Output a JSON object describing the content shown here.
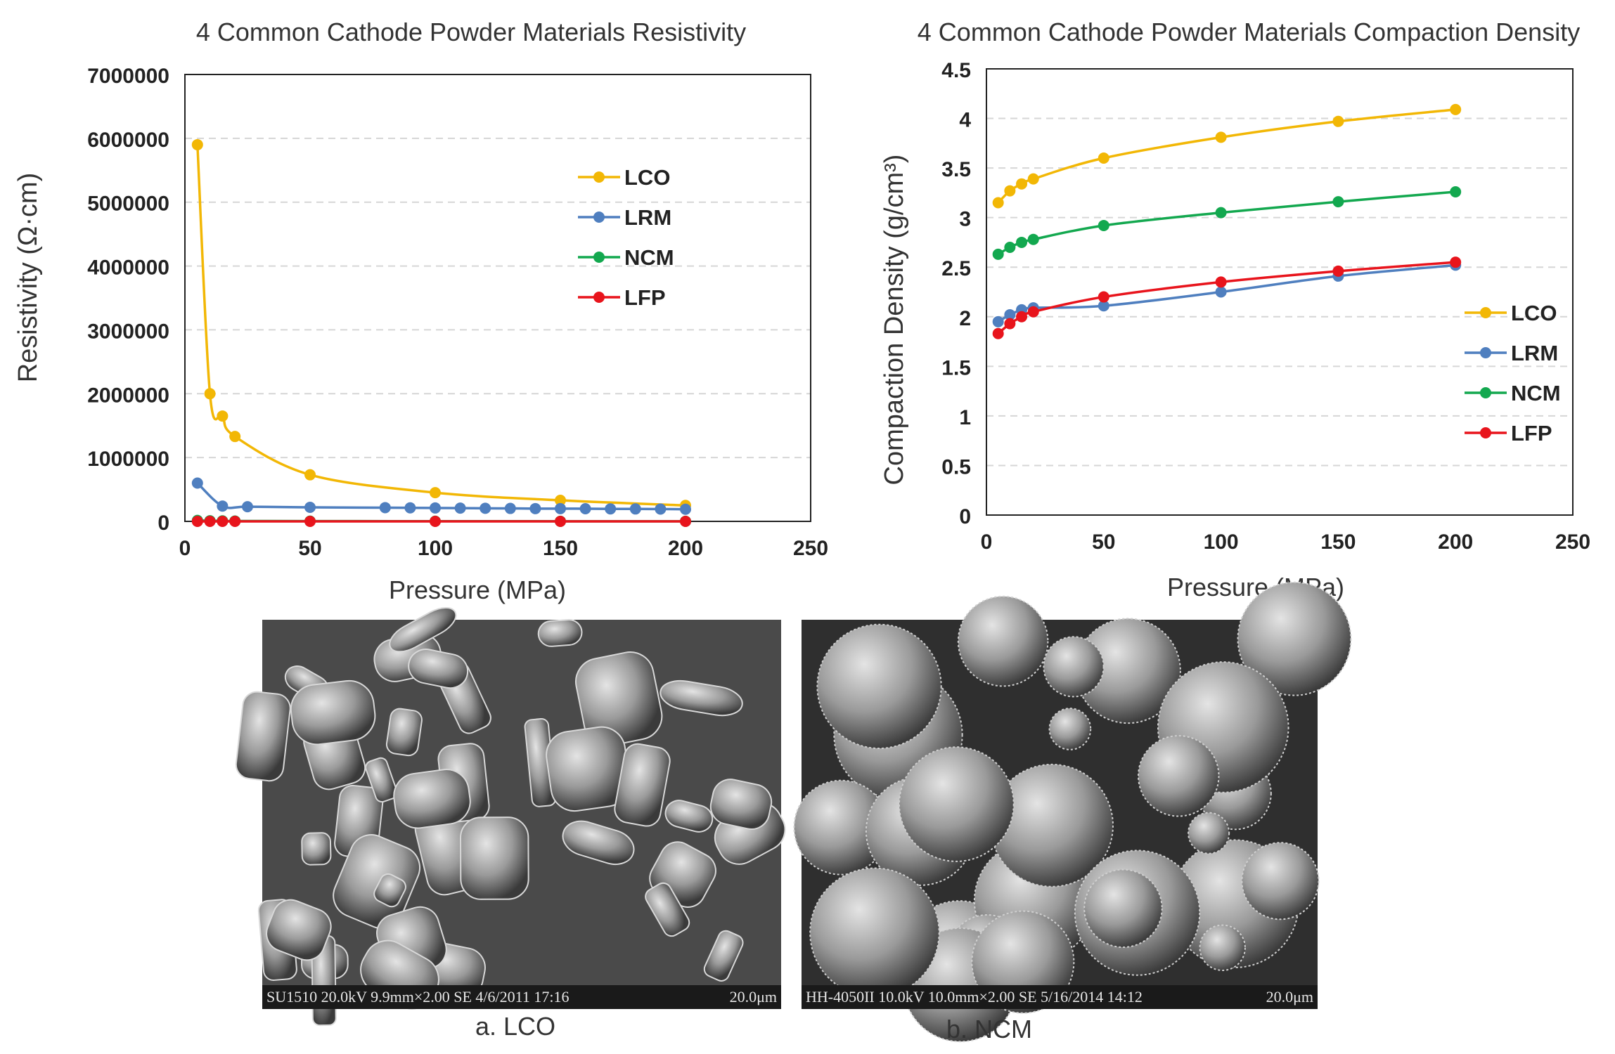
{
  "chart_data": [
    {
      "type": "line",
      "title": "4 Common Cathode Powder Materials Resistivity",
      "xlabel": "Pressure (MPa)",
      "ylabel": "Resistivity (Ω·cm)",
      "xlim": [
        0,
        250
      ],
      "ylim": [
        0,
        7000000
      ],
      "xticks": [
        "0",
        "50",
        "100",
        "150",
        "200",
        "250"
      ],
      "yticks": [
        "0",
        "1000000",
        "2000000",
        "3000000",
        "4000000",
        "5000000",
        "6000000",
        "7000000"
      ],
      "grid": "horizontal dashed",
      "legend": "right",
      "series": [
        {
          "name": "LCO",
          "color": "#F2B705",
          "x": [
            5,
            10,
            15,
            20,
            50,
            100,
            150,
            200
          ],
          "y": [
            5900000,
            2000000,
            1650000,
            1330000,
            730000,
            450000,
            330000,
            250000
          ]
        },
        {
          "name": "LRM",
          "color": "#4F7FBF",
          "x": [
            5,
            15,
            25,
            50,
            80,
            90,
            100,
            110,
            120,
            130,
            140,
            150,
            160,
            170,
            180,
            190,
            200
          ],
          "y": [
            600000,
            240000,
            230000,
            220000,
            215000,
            212000,
            210000,
            208000,
            205000,
            203000,
            200000,
            200000,
            198000,
            196000,
            195000,
            193000,
            190000
          ]
        },
        {
          "name": "NCM",
          "color": "#13A84F",
          "x": [
            5,
            10,
            15,
            20,
            50,
            100,
            150,
            200
          ],
          "y": [
            15000,
            10000,
            8000,
            6000,
            4000,
            3000,
            2000,
            2000
          ]
        },
        {
          "name": "LFP",
          "color": "#E8141C",
          "x": [
            5,
            10,
            15,
            20,
            50,
            100,
            150,
            200
          ],
          "y": [
            0,
            0,
            0,
            0,
            0,
            0,
            0,
            0
          ]
        }
      ]
    },
    {
      "type": "line",
      "title": "4 Common Cathode Powder Materials Compaction Density",
      "xlabel": "Pressure (MPa)",
      "ylabel": "Compaction Density (g/cm³)",
      "xlim": [
        0,
        250
      ],
      "ylim": [
        0,
        4.5
      ],
      "xticks": [
        "0",
        "50",
        "100",
        "150",
        "200",
        "250"
      ],
      "yticks": [
        "0",
        "0.5",
        "1",
        "1.5",
        "2",
        "2.5",
        "3",
        "3.5",
        "4",
        "4.5"
      ],
      "grid": "horizontal dashed",
      "legend": "right",
      "series": [
        {
          "name": "LCO",
          "color": "#F2B705",
          "x": [
            5,
            10,
            15,
            20,
            50,
            100,
            150,
            200
          ],
          "y": [
            3.15,
            3.27,
            3.34,
            3.39,
            3.6,
            3.81,
            3.97,
            4.09
          ]
        },
        {
          "name": "LRM",
          "color": "#4F7FBF",
          "x": [
            5,
            10,
            15,
            20,
            50,
            100,
            150,
            200
          ],
          "y": [
            1.95,
            2.02,
            2.07,
            2.09,
            2.11,
            2.25,
            2.41,
            2.52
          ]
        },
        {
          "name": "NCM",
          "color": "#13A84F",
          "x": [
            5,
            10,
            15,
            20,
            50,
            100,
            150,
            200
          ],
          "y": [
            2.63,
            2.7,
            2.75,
            2.78,
            2.92,
            3.05,
            3.16,
            3.26
          ]
        },
        {
          "name": "LFP",
          "color": "#E8141C",
          "x": [
            5,
            10,
            15,
            20,
            50,
            100,
            150,
            200
          ],
          "y": [
            1.83,
            1.93,
            2.0,
            2.05,
            2.2,
            2.35,
            2.46,
            2.55
          ]
        }
      ]
    }
  ],
  "images": [
    {
      "caption": "a. LCO",
      "meta": "SU1510 20.0kV 9.9mm×2.00 SE 4/6/2011 17:16",
      "scale": "20.0μm"
    },
    {
      "caption": "b. NCM",
      "meta": "HH-4050II 10.0kV 10.0mm×2.00 SE 5/16/2014 14:12",
      "scale": "20.0μm"
    }
  ]
}
